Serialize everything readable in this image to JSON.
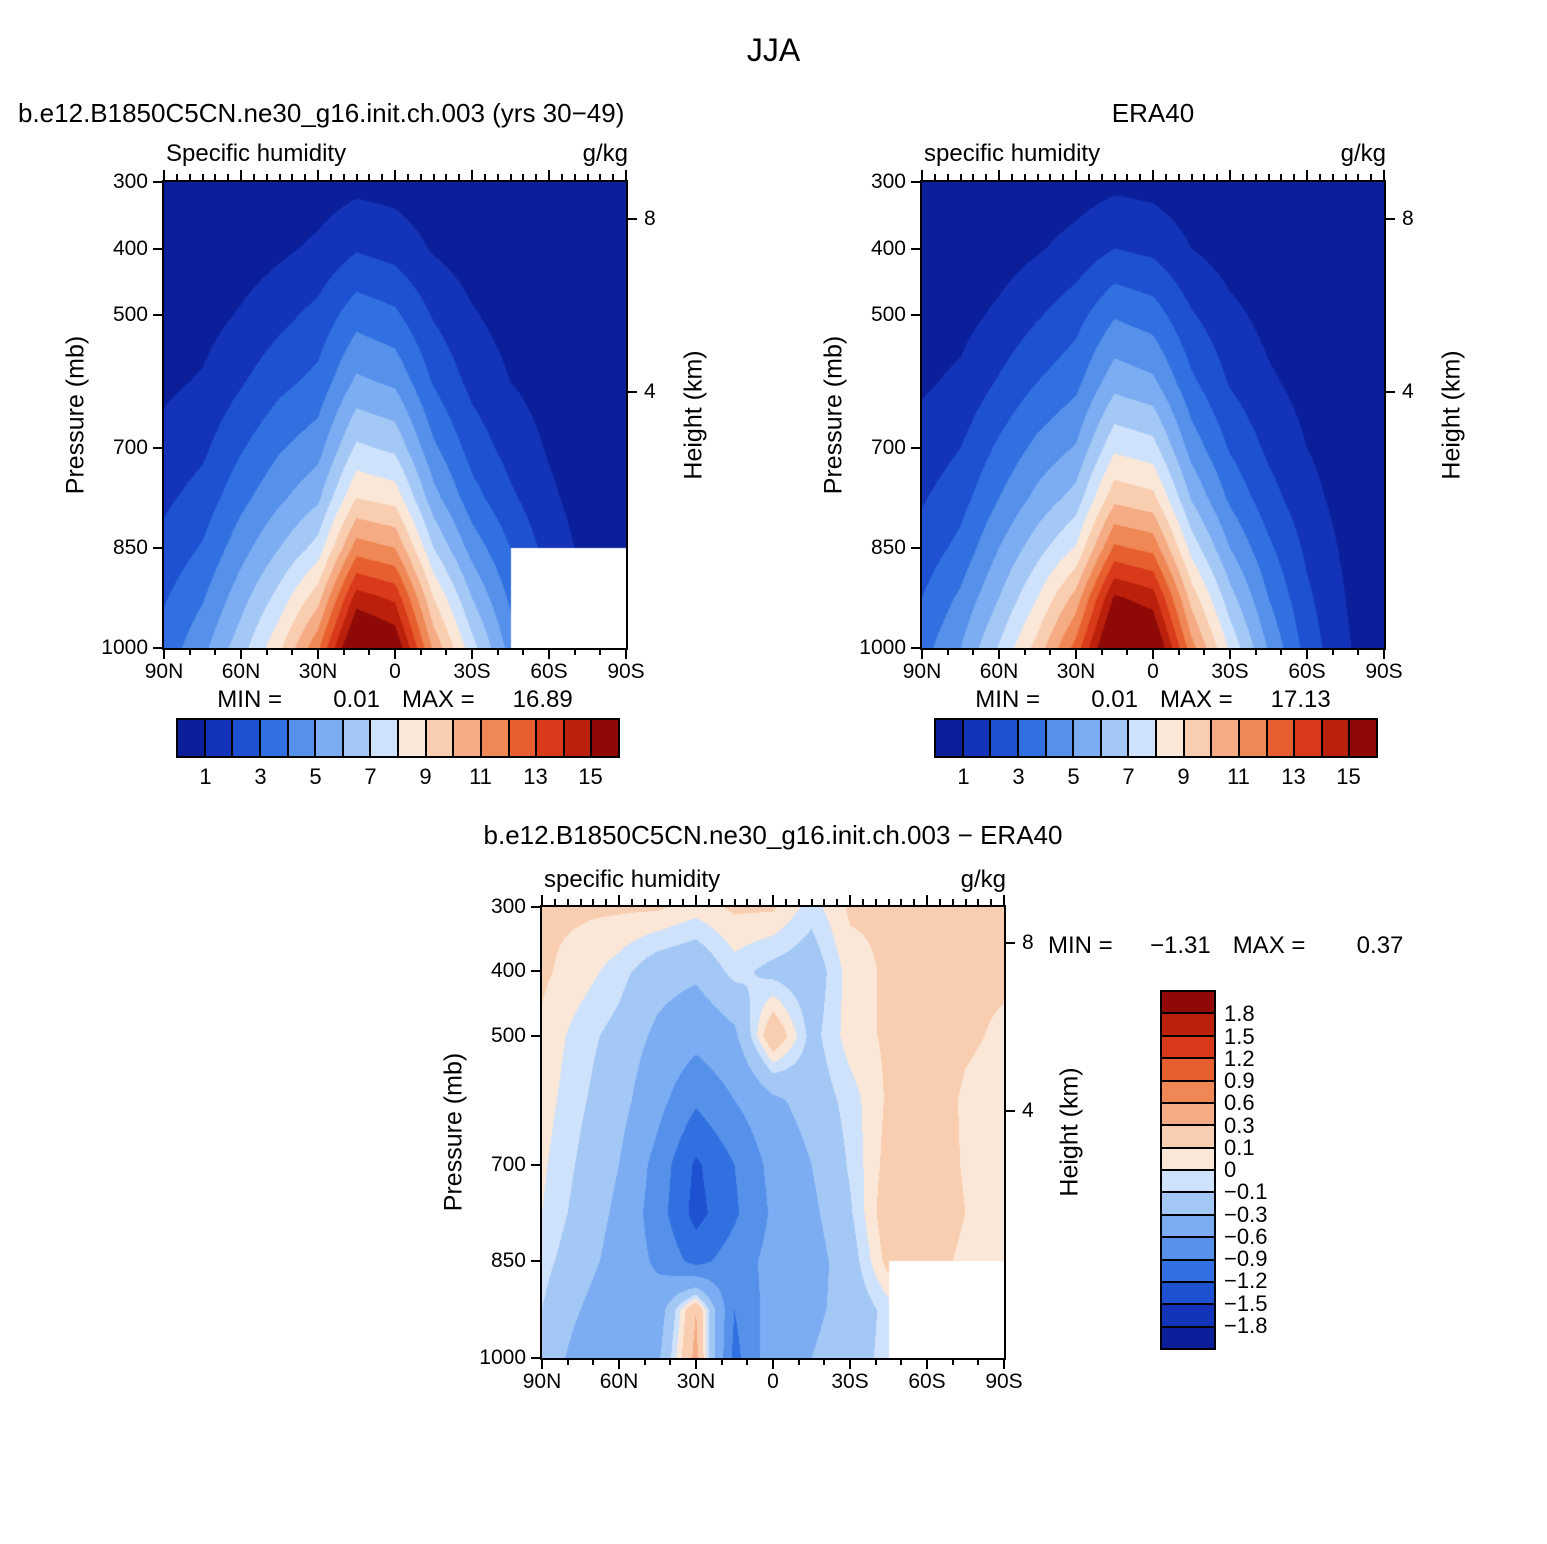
{
  "page_title": "JJA",
  "labels": {
    "pressure_axis": "Pressure (mb)",
    "height_axis": "Height (km)"
  },
  "panels": [
    {
      "title": "b.e12.B1850C5CN.ne30_g16.init.ch.003 (yrs 30−49)",
      "subtitle": "Specific humidity",
      "units": "g/kg",
      "stats": {
        "min_label": "MIN =",
        "min": "0.01",
        "max_label": "MAX =",
        "max": "16.89"
      }
    },
    {
      "title": "ERA40",
      "subtitle": "specific humidity",
      "units": "g/kg",
      "stats": {
        "min_label": "MIN =",
        "min": "0.01",
        "max_label": "MAX =",
        "max": "17.13"
      }
    },
    {
      "title": "b.e12.B1850C5CN.ne30_g16.init.ch.003 − ERA40",
      "subtitle": "specific humidity",
      "units": "g/kg",
      "stats": {
        "min_label": "MIN =",
        "min": "−1.31",
        "max_label": "MAX =",
        "max": "0.37"
      }
    }
  ],
  "axes": {
    "lat_ticks": [
      {
        "v": 90,
        "t": "90N"
      },
      {
        "v": 60,
        "t": "60N"
      },
      {
        "v": 30,
        "t": "30N"
      },
      {
        "v": 0,
        "t": "0"
      },
      {
        "v": -30,
        "t": "30S"
      },
      {
        "v": -60,
        "t": "60S"
      },
      {
        "v": -90,
        "t": "90S"
      }
    ],
    "p_ticks": [
      {
        "v": 300,
        "t": "300"
      },
      {
        "v": 400,
        "t": "400"
      },
      {
        "v": 500,
        "t": "500"
      },
      {
        "v": 700,
        "t": "700"
      },
      {
        "v": 850,
        "t": "850"
      },
      {
        "v": 1000,
        "t": "1000"
      }
    ],
    "h_ticks": [
      {
        "v": 356,
        "t": "8"
      },
      {
        "v": 616,
        "t": "4"
      }
    ]
  },
  "palette16": [
    "#0b1f9a",
    "#1334b8",
    "#1e50d2",
    "#3070e0",
    "#5590ea",
    "#7cadf2",
    "#a3c8f6",
    "#cfe2fb",
    "#fbe7d7",
    "#f9cdb0",
    "#f5ab83",
    "#ef8854",
    "#e75f2e",
    "#d93a1a",
    "#bb200c",
    "#8f0a06"
  ],
  "colorbars": {
    "q_colorbar": {
      "orientation": "horizontal",
      "range": [
        0,
        16
      ],
      "ticks": [
        {
          "v": 1,
          "t": "1"
        },
        {
          "v": 3,
          "t": "3"
        },
        {
          "v": 5,
          "t": "5"
        },
        {
          "v": 7,
          "t": "7"
        },
        {
          "v": 9,
          "t": "9"
        },
        {
          "v": 11,
          "t": "11"
        },
        {
          "v": 13,
          "t": "13"
        },
        {
          "v": 15,
          "t": "15"
        }
      ]
    },
    "diff_colorbar": {
      "orientation": "vertical",
      "boundary_labels": [
        "1.8",
        "1.5",
        "1.2",
        "0.9",
        "0.6",
        "0.3",
        "0.1",
        "0",
        "−0.1",
        "−0.3",
        "−0.6",
        "−0.9",
        "−1.2",
        "−1.5",
        "−1.8"
      ]
    }
  },
  "chart_data": [
    {
      "id": "model",
      "type": "heatmap",
      "title": "b.e12.B1850C5CN.ne30_g16.init.ch.003 (yrs 30−49)",
      "variable": "Specific humidity",
      "units": "g/kg",
      "season": "JJA",
      "min": 0.01,
      "max": 16.89,
      "levels": [
        1,
        2,
        3,
        4,
        5,
        6,
        7,
        8,
        9,
        10,
        11,
        12,
        13,
        14,
        15
      ],
      "lat": [
        90,
        75,
        60,
        45,
        30,
        15,
        0,
        -15,
        -30,
        -45,
        -60,
        -75,
        -90
      ],
      "pressure": [
        300,
        400,
        500,
        600,
        700,
        775,
        850,
        925,
        1000
      ],
      "values": [
        [
          0.05,
          0.08,
          0.15,
          0.3,
          0.45,
          0.7,
          0.6,
          0.35,
          0.2,
          0.1,
          0.05,
          0.03,
          0.02
        ],
        [
          0.15,
          0.25,
          0.45,
          0.8,
          1.2,
          1.9,
          1.6,
          0.9,
          0.5,
          0.3,
          0.15,
          0.08,
          0.05
        ],
        [
          0.4,
          0.6,
          1.1,
          1.7,
          2.3,
          3.6,
          3.2,
          1.9,
          1.1,
          0.6,
          0.35,
          0.2,
          0.1
        ],
        [
          0.8,
          1.1,
          1.9,
          2.7,
          3.3,
          5.2,
          4.8,
          2.9,
          1.7,
          1.0,
          0.6,
          0.3,
          0.15
        ],
        [
          1.3,
          1.8,
          2.9,
          3.9,
          4.6,
          7.2,
          6.8,
          4.2,
          2.6,
          1.6,
          0.9,
          0.4,
          0.2
        ],
        [
          1.8,
          2.4,
          3.7,
          4.8,
          5.8,
          9.0,
          8.6,
          5.4,
          3.4,
          2.2,
          1.2,
          0.5,
          0.25
        ],
        [
          2.3,
          3.1,
          4.6,
          6.0,
          7.4,
          11.5,
          11.0,
          7.0,
          4.6,
          3.0,
          1.6,
          0.7,
          0.3
        ],
        [
          2.9,
          3.9,
          5.6,
          7.4,
          9.6,
          14.5,
          13.8,
          9.0,
          6.0,
          3.8,
          null,
          null,
          null
        ],
        [
          3.4,
          4.7,
          6.6,
          8.8,
          11.8,
          16.89,
          16.0,
          10.8,
          7.4,
          4.6,
          null,
          null,
          null
        ]
      ]
    },
    {
      "id": "era40",
      "type": "heatmap",
      "title": "ERA40",
      "variable": "specific humidity",
      "units": "g/kg",
      "season": "JJA",
      "min": 0.01,
      "max": 17.13,
      "levels": [
        1,
        2,
        3,
        4,
        5,
        6,
        7,
        8,
        9,
        10,
        11,
        12,
        13,
        14,
        15
      ],
      "lat": [
        90,
        75,
        60,
        45,
        30,
        15,
        0,
        -15,
        -30,
        -45,
        -60,
        -75,
        -90
      ],
      "pressure": [
        300,
        400,
        500,
        600,
        700,
        775,
        850,
        925,
        1000
      ],
      "values": [
        [
          0.05,
          0.08,
          0.16,
          0.32,
          0.5,
          0.75,
          0.65,
          0.38,
          0.22,
          0.12,
          0.06,
          0.03,
          0.02
        ],
        [
          0.16,
          0.27,
          0.5,
          0.9,
          1.35,
          2.0,
          1.75,
          1.0,
          0.55,
          0.32,
          0.16,
          0.09,
          0.05
        ],
        [
          0.45,
          0.65,
          1.2,
          1.9,
          2.6,
          3.9,
          3.5,
          2.1,
          1.25,
          0.7,
          0.4,
          0.22,
          0.12
        ],
        [
          0.85,
          1.2,
          2.1,
          3.0,
          3.7,
          5.6,
          5.2,
          3.2,
          1.9,
          1.15,
          0.65,
          0.35,
          0.18
        ],
        [
          1.4,
          2.0,
          3.2,
          4.3,
          5.1,
          7.8,
          7.4,
          4.6,
          2.9,
          1.8,
          1.0,
          0.5,
          0.25
        ],
        [
          1.9,
          2.6,
          4.0,
          5.3,
          6.4,
          9.7,
          9.3,
          5.9,
          3.8,
          2.4,
          1.35,
          0.6,
          0.3
        ],
        [
          2.4,
          3.3,
          5.0,
          6.6,
          8.1,
          12.2,
          11.7,
          7.6,
          5.0,
          3.2,
          1.8,
          0.8,
          0.35
        ],
        [
          3.0,
          4.2,
          6.0,
          8.0,
          10.4,
          15.2,
          14.5,
          9.6,
          6.4,
          4.0,
          2.2,
          1.0,
          0.4
        ],
        [
          3.6,
          5.0,
          7.1,
          9.4,
          12.4,
          17.13,
          16.6,
          11.4,
          7.8,
          4.9,
          2.6,
          1.1,
          0.45
        ]
      ]
    },
    {
      "id": "diff",
      "type": "heatmap",
      "title": "b.e12.B1850C5CN.ne30_g16.init.ch.003 − ERA40",
      "variable": "specific humidity",
      "units": "g/kg",
      "season": "JJA",
      "min": -1.31,
      "max": 0.37,
      "levels": [
        -1.8,
        -1.5,
        -1.2,
        -0.9,
        -0.6,
        -0.3,
        -0.1,
        0,
        0.1,
        0.3,
        0.6,
        0.9,
        1.2,
        1.5,
        1.8
      ],
      "lat": [
        90,
        75,
        60,
        45,
        30,
        15,
        0,
        -15,
        -30,
        -45,
        -60,
        -75,
        -90
      ],
      "pressure": [
        300,
        400,
        500,
        600,
        700,
        775,
        850,
        925,
        1000
      ],
      "values": [
        [
          0.12,
          0.12,
          0.12,
          0.12,
          0.05,
          0.12,
          0.12,
          -0.05,
          0.12,
          0.12,
          0.15,
          0.12,
          0.12
        ],
        [
          0.12,
          0.05,
          -0.05,
          -0.2,
          -0.25,
          -0.05,
          -0.15,
          -0.2,
          0.05,
          0.12,
          0.18,
          0.12,
          0.12
        ],
        [
          0.08,
          -0.05,
          -0.15,
          -0.35,
          -0.5,
          -0.35,
          0.25,
          -0.15,
          0.05,
          0.12,
          0.2,
          0.12,
          0.08
        ],
        [
          0.05,
          -0.08,
          -0.2,
          -0.5,
          -0.85,
          -0.6,
          -0.35,
          -0.2,
          -0.05,
          0.12,
          0.18,
          0.08,
          0.05
        ],
        [
          0.02,
          -0.12,
          -0.3,
          -0.7,
          -1.25,
          -0.9,
          -0.5,
          -0.3,
          -0.08,
          0.15,
          0.22,
          0.08,
          0.02
        ],
        [
          0.0,
          -0.15,
          -0.35,
          -0.75,
          -1.31,
          -0.95,
          -0.55,
          -0.35,
          -0.12,
          0.2,
          0.25,
          0.1,
          0.02
        ],
        [
          -0.05,
          -0.2,
          -0.4,
          -0.65,
          -1.0,
          -0.75,
          -0.5,
          -0.4,
          -0.18,
          0.15,
          0.2,
          0.05,
          0.02
        ],
        [
          -0.1,
          -0.3,
          -0.5,
          -0.45,
          0.3,
          -0.9,
          -0.45,
          -0.35,
          -0.22,
          -0.05,
          null,
          null,
          null
        ],
        [
          -0.15,
          -0.4,
          -0.6,
          -0.35,
          0.37,
          -1.0,
          -0.4,
          -0.3,
          -0.18,
          -0.05,
          null,
          null,
          null
        ]
      ]
    }
  ]
}
